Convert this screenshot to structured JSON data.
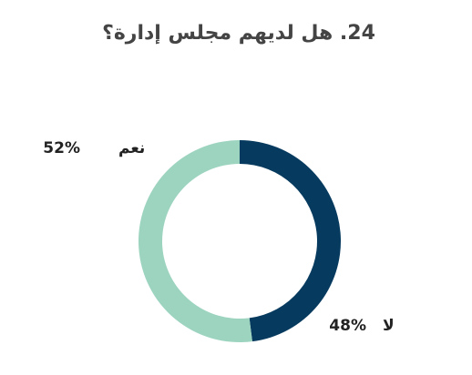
{
  "chart_data": {
    "type": "pie",
    "title": "24. هل لديهم مجلس إدارة؟",
    "categories": [
      "لا",
      "نعم"
    ],
    "values": [
      48,
      52
    ],
    "value_labels": [
      "48%",
      "52%"
    ],
    "colors": [
      "#063a5e",
      "#9dd4c0"
    ],
    "donut": true
  }
}
